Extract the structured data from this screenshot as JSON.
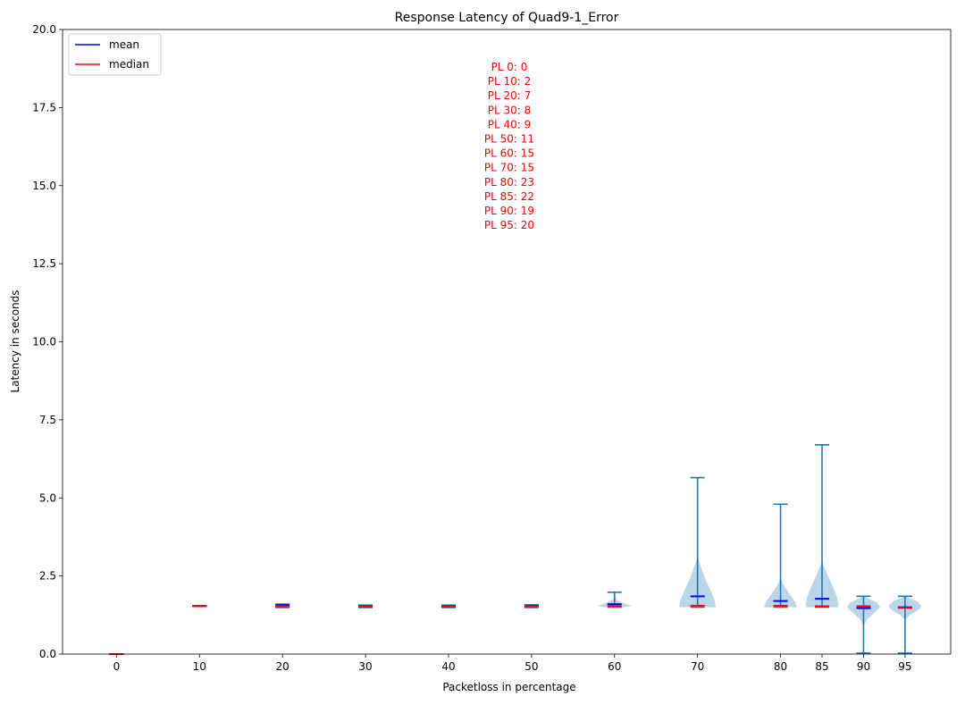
{
  "chart_data": {
    "type": "violin",
    "title": "Response Latency of Quad9-1_Error",
    "xlabel": "Packetloss in percentage",
    "ylabel": "Latency in seconds",
    "ylim": [
      0,
      20
    ],
    "xlim": [
      -6.5,
      100.5
    ],
    "yticks": [
      0.0,
      2.5,
      5.0,
      7.5,
      10.0,
      12.5,
      15.0,
      17.5,
      20.0
    ],
    "ytick_labels": [
      "0.0",
      "2.5",
      "5.0",
      "7.5",
      "10.0",
      "12.5",
      "15.0",
      "17.5",
      "20.0"
    ],
    "grid": false,
    "legend_position": "top-left",
    "legend": [
      {
        "label": "mean",
        "color": "#0000ff"
      },
      {
        "label": "median",
        "color": "#ff0000"
      }
    ],
    "annotation": {
      "color": "#ff0000",
      "lines": [
        "PL 0: 0",
        "PL 10: 2",
        "PL 20: 7",
        "PL 30: 8",
        "PL 40: 9",
        "PL 50: 11",
        "PL 60: 15",
        "PL 70: 15",
        "PL 80: 23",
        "PL 85: 22",
        "PL 90: 19",
        "PL 95: 20"
      ]
    },
    "series": [
      {
        "x": 0,
        "label": "0",
        "min": 0.0,
        "max": 0.0,
        "mean": 0.0,
        "median": 0.0,
        "halfwidth": 0.2,
        "shape": [
          [
            0.0,
            0
          ],
          [
            0.01,
            1
          ],
          [
            0.02,
            0
          ]
        ]
      },
      {
        "x": 10,
        "label": "10",
        "min": 1.53,
        "max": 1.55,
        "mean": 1.54,
        "median": 1.54,
        "halfwidth": 1.0,
        "shape": [
          [
            1.53,
            0.1
          ],
          [
            1.54,
            1
          ],
          [
            1.55,
            0.1
          ]
        ]
      },
      {
        "x": 20,
        "label": "20",
        "min": 1.49,
        "max": 1.6,
        "mean": 1.57,
        "median": 1.53,
        "halfwidth": 1.0,
        "shape": [
          [
            1.49,
            0.2
          ],
          [
            1.52,
            1
          ],
          [
            1.56,
            0.5
          ],
          [
            1.6,
            0.1
          ]
        ]
      },
      {
        "x": 30,
        "label": "30",
        "min": 1.49,
        "max": 1.57,
        "mean": 1.53,
        "median": 1.52,
        "halfwidth": 1.0,
        "shape": [
          [
            1.49,
            0.2
          ],
          [
            1.52,
            1
          ],
          [
            1.57,
            0.1
          ]
        ]
      },
      {
        "x": 40,
        "label": "40",
        "min": 1.49,
        "max": 1.57,
        "mean": 1.53,
        "median": 1.52,
        "halfwidth": 1.0,
        "shape": [
          [
            1.49,
            0.2
          ],
          [
            1.52,
            1
          ],
          [
            1.57,
            0.1
          ]
        ]
      },
      {
        "x": 50,
        "label": "50",
        "min": 1.49,
        "max": 1.58,
        "mean": 1.54,
        "median": 1.53,
        "halfwidth": 1.0,
        "shape": [
          [
            1.49,
            0.2
          ],
          [
            1.53,
            1
          ],
          [
            1.58,
            0.1
          ]
        ]
      },
      {
        "x": 60,
        "label": "60",
        "min": 1.5,
        "max": 1.98,
        "mean": 1.6,
        "median": 1.54,
        "halfwidth": 2.0,
        "shape": [
          [
            1.5,
            0.6
          ],
          [
            1.55,
            1
          ],
          [
            1.65,
            0.45
          ],
          [
            1.75,
            0.1
          ],
          [
            1.98,
            0.01
          ]
        ]
      },
      {
        "x": 70,
        "label": "70",
        "min": 1.5,
        "max": 5.65,
        "mean": 1.85,
        "median": 1.55,
        "halfwidth": 2.2,
        "shape": [
          [
            1.5,
            1
          ],
          [
            1.7,
            0.95
          ],
          [
            2.0,
            0.75
          ],
          [
            2.3,
            0.5
          ],
          [
            2.6,
            0.3
          ],
          [
            2.9,
            0.12
          ],
          [
            3.1,
            0.02
          ],
          [
            5.65,
            0
          ]
        ]
      },
      {
        "x": 80,
        "label": "80",
        "min": 1.5,
        "max": 4.8,
        "mean": 1.7,
        "median": 1.55,
        "halfwidth": 2.0,
        "shape": [
          [
            1.5,
            1
          ],
          [
            1.7,
            0.85
          ],
          [
            1.95,
            0.5
          ],
          [
            2.2,
            0.2
          ],
          [
            2.4,
            0.02
          ],
          [
            4.8,
            0
          ]
        ]
      },
      {
        "x": 85,
        "label": "85",
        "min": 1.5,
        "max": 6.7,
        "mean": 1.77,
        "median": 1.53,
        "halfwidth": 2.0,
        "shape": [
          [
            1.5,
            1
          ],
          [
            1.8,
            0.92
          ],
          [
            2.1,
            0.7
          ],
          [
            2.4,
            0.45
          ],
          [
            2.7,
            0.2
          ],
          [
            2.95,
            0.02
          ],
          [
            6.7,
            0
          ]
        ]
      },
      {
        "x": 90,
        "label": "90",
        "min": 0.03,
        "max": 1.85,
        "mean": 1.47,
        "median": 1.53,
        "halfwidth": 2.0,
        "shape": [
          [
            0.9,
            0
          ],
          [
            1.1,
            0.2
          ],
          [
            1.35,
            0.7
          ],
          [
            1.5,
            1
          ],
          [
            1.65,
            0.8
          ],
          [
            1.8,
            0.2
          ],
          [
            1.85,
            0
          ]
        ]
      },
      {
        "x": 95,
        "label": "95",
        "min": 0.03,
        "max": 1.85,
        "mean": 1.5,
        "median": 1.48,
        "halfwidth": 2.0,
        "shape": [
          [
            1.1,
            0
          ],
          [
            1.25,
            0.3
          ],
          [
            1.45,
            0.9
          ],
          [
            1.55,
            1
          ],
          [
            1.7,
            0.7
          ],
          [
            1.8,
            0.2
          ],
          [
            1.85,
            0
          ]
        ]
      }
    ]
  }
}
